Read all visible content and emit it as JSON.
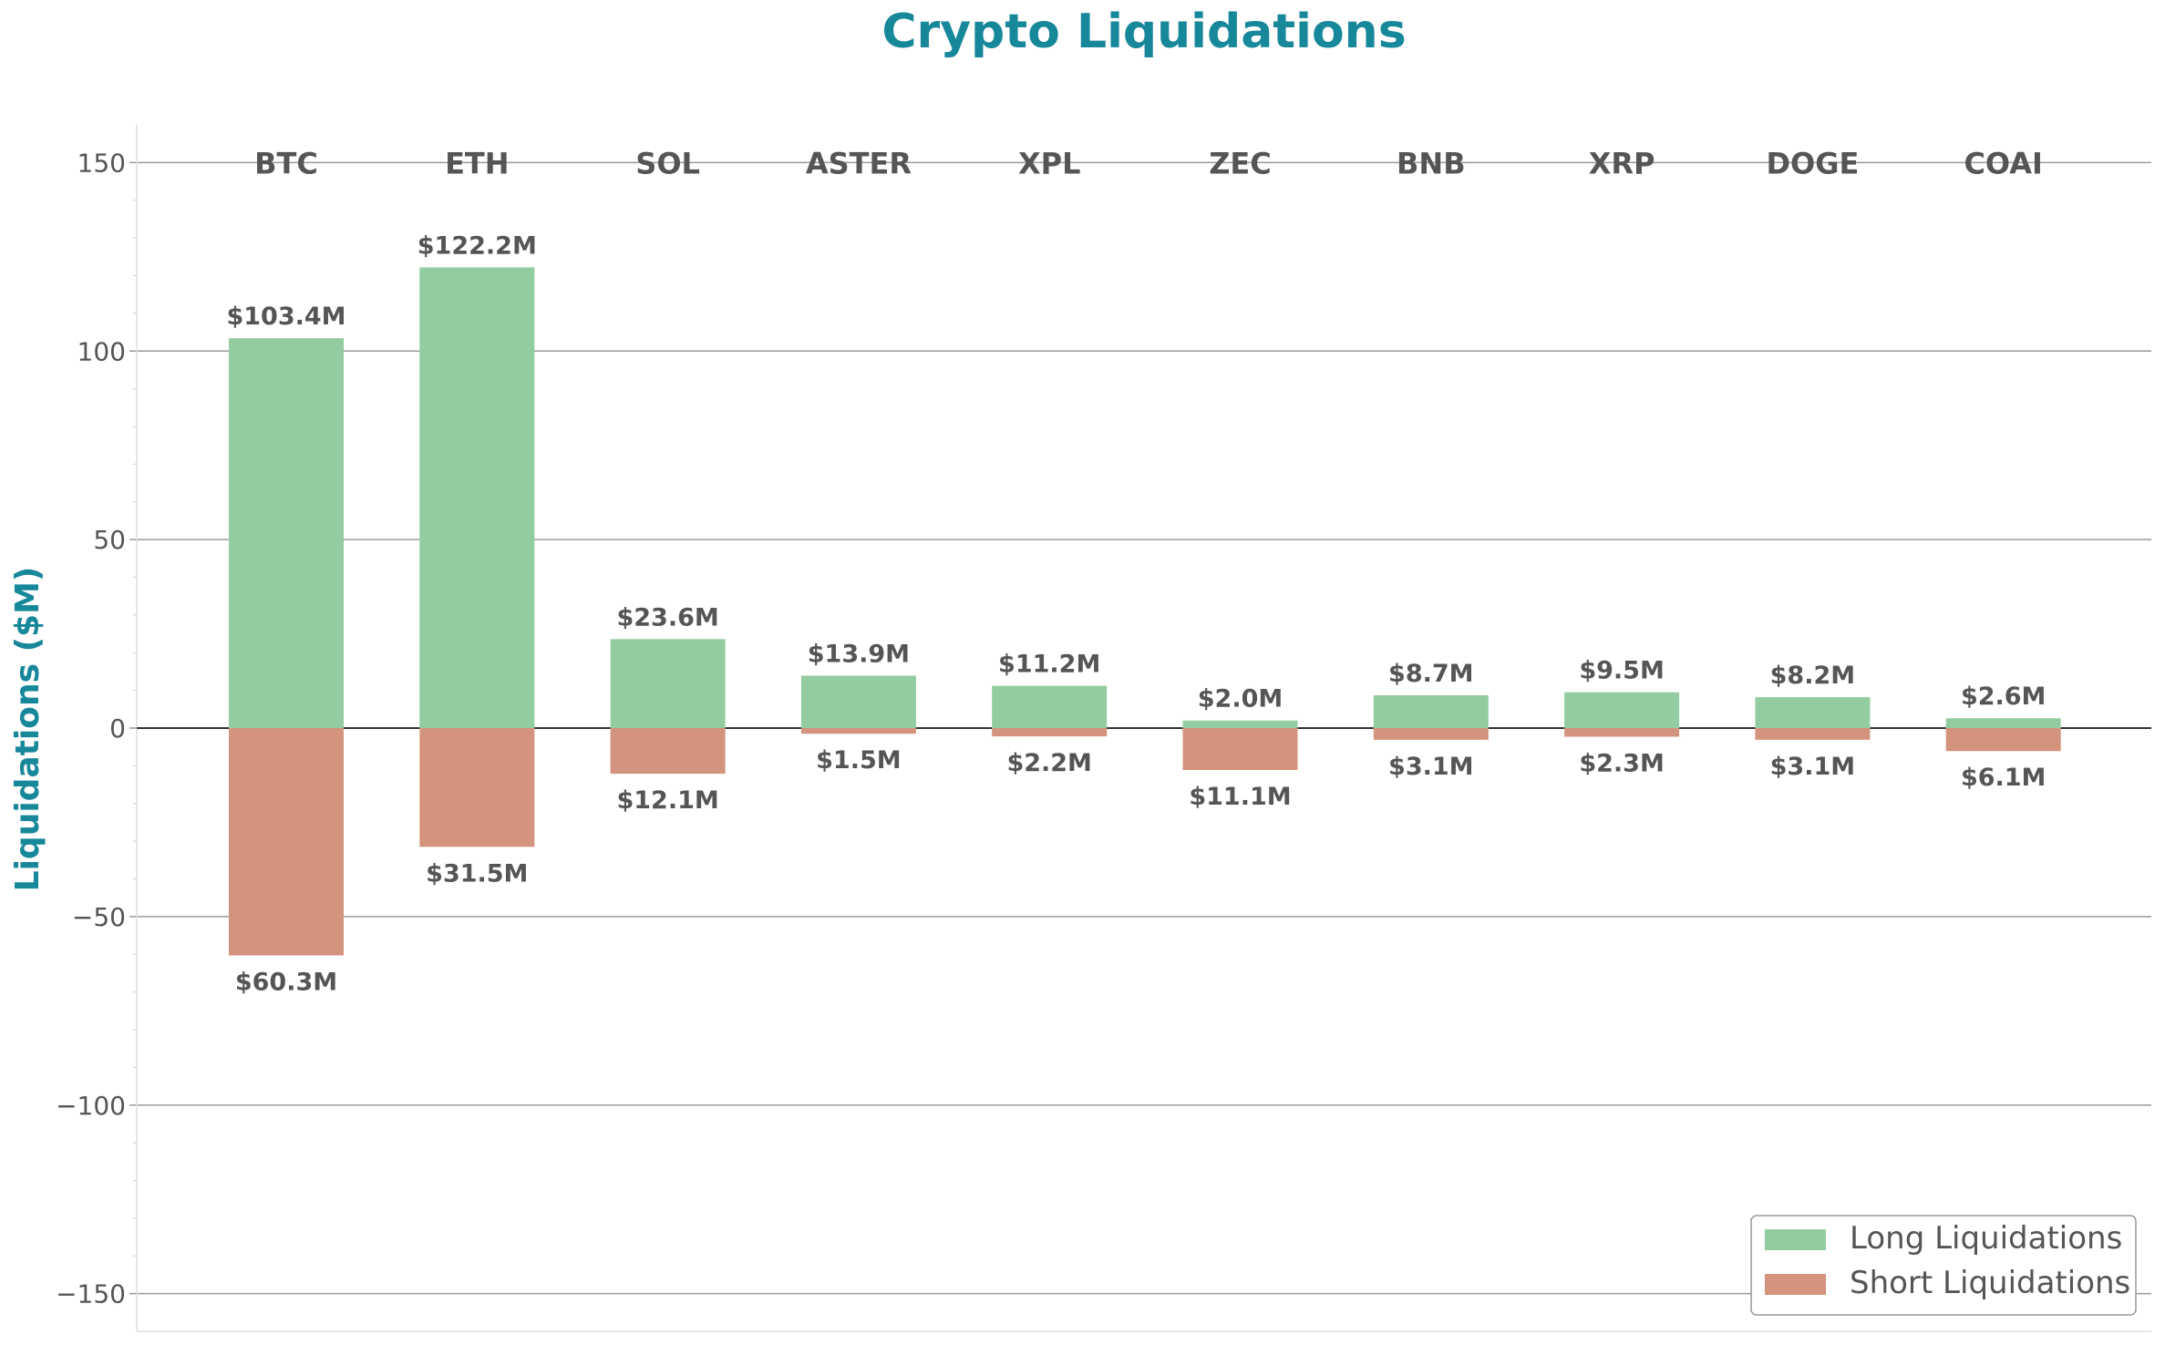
{
  "chart_data": {
    "type": "bar",
    "title": "Crypto Liquidations",
    "ylabel": "Liquidations ($M)",
    "xlabel": "",
    "ylim": [
      -160,
      160
    ],
    "yticks": [
      150,
      100,
      50,
      0,
      -50,
      -100,
      -150
    ],
    "ytick_labels": [
      "150",
      "100",
      "50",
      "0",
      "−50",
      "−100",
      "−150"
    ],
    "grid": true,
    "categories": [
      "BTC",
      "ETH",
      "SOL",
      "ASTER",
      "XPL",
      "ZEC",
      "BNB",
      "XRP",
      "DOGE",
      "COAI"
    ],
    "series": [
      {
        "name": "Long Liquidations",
        "color": "#92cca0",
        "values": [
          103.4,
          122.2,
          23.6,
          13.9,
          11.2,
          2.0,
          8.7,
          9.5,
          8.2,
          2.6
        ],
        "labels": [
          "$103.4M",
          "$122.2M",
          "$23.6M",
          "$13.9M",
          "$11.2M",
          "$2.0M",
          "$8.7M",
          "$9.5M",
          "$8.2M",
          "$2.6M"
        ]
      },
      {
        "name": "Short Liquidations",
        "color": "#d3937c",
        "values": [
          -60.3,
          -31.5,
          -12.1,
          -1.5,
          -2.2,
          -11.1,
          -3.1,
          -2.3,
          -3.1,
          -6.1
        ],
        "labels": [
          "$60.3M",
          "$31.5M",
          "$12.1M",
          "$1.5M",
          "$2.2M",
          "$11.1M",
          "$3.1M",
          "$2.3M",
          "$3.1M",
          "$6.1M"
        ]
      }
    ],
    "legend": "bottom-right"
  }
}
